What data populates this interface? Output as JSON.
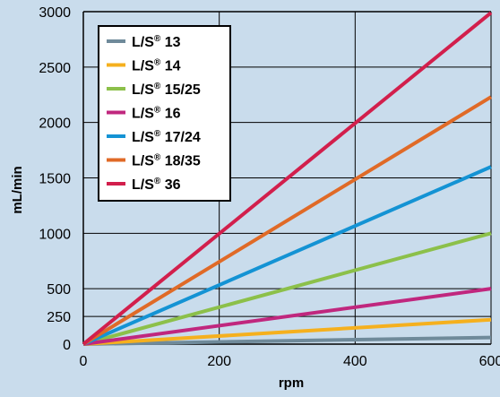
{
  "chart_data": {
    "type": "line",
    "xlabel": "rpm",
    "ylabel": "mL/min",
    "xlim": [
      0,
      600
    ],
    "ylim": [
      0,
      3000
    ],
    "x_ticks": [
      0,
      200,
      400,
      600
    ],
    "y_ticks": [
      0,
      250,
      500,
      1000,
      1500,
      2000,
      2500,
      3000
    ],
    "grid": true,
    "legend_position": "top-left",
    "colors": {
      "background": "#c9dcec",
      "grid": "#000000",
      "text": "#000000"
    },
    "series": [
      {
        "name": "L/S® 13",
        "color": "#6f8a9a",
        "x": [
          0,
          600
        ],
        "y": [
          0,
          60
        ]
      },
      {
        "name": "L/S® 14",
        "color": "#f5b01e",
        "x": [
          0,
          600
        ],
        "y": [
          0,
          220
        ]
      },
      {
        "name": "L/S® 15/25",
        "color": "#8cc04a",
        "x": [
          0,
          600
        ],
        "y": [
          0,
          1000
        ]
      },
      {
        "name": "L/S® 16",
        "color": "#c0277e",
        "x": [
          0,
          600
        ],
        "y": [
          0,
          500
        ]
      },
      {
        "name": "L/S® 17/24",
        "color": "#1493d4",
        "x": [
          0,
          600
        ],
        "y": [
          0,
          1600
        ]
      },
      {
        "name": "L/S® 18/35",
        "color": "#e06a27",
        "x": [
          0,
          600
        ],
        "y": [
          0,
          2230
        ]
      },
      {
        "name": "L/S® 36",
        "color": "#d21f4c",
        "x": [
          0,
          600
        ],
        "y": [
          0,
          2990
        ]
      }
    ]
  }
}
